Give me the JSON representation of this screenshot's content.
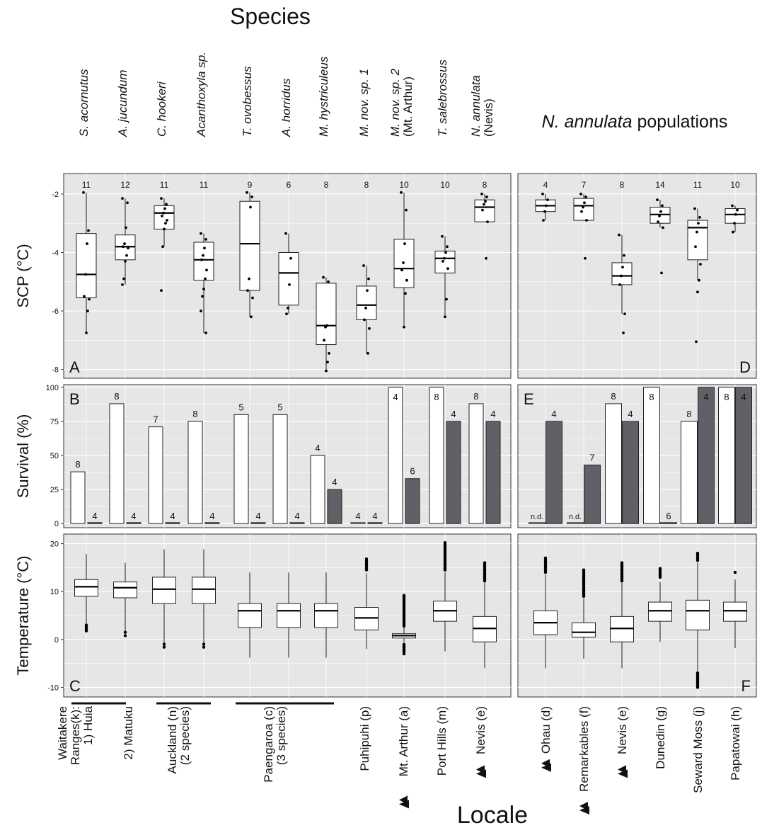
{
  "header": {
    "species_title": "Species",
    "populations_title": "N. annulata populations",
    "populations_title_italic": "N. annulata",
    "populations_title_rest": " populations",
    "locale_title": "Locale"
  },
  "species_labels": [
    [
      "S. acornutus"
    ],
    [
      "A. jucundum"
    ],
    [
      "C. hookeri"
    ],
    [
      "Acanthoxyla sp."
    ],
    [
      "T. ovobessus"
    ],
    [
      "A. horridus"
    ],
    [
      "M. hystriculeus"
    ],
    [
      "M. nov. sp. 1"
    ],
    [
      "M. nov. sp. 2",
      "(Mt. Arthur)"
    ],
    [
      "T. salebrossus"
    ],
    [
      "N. annulata",
      "(Nevis)"
    ]
  ],
  "locale_left": [
    {
      "lines": [
        "Waitakere",
        "Ranges(k):",
        "1) Huia"
      ],
      "mark": false
    },
    {
      "lines": [
        "2) Matuku"
      ],
      "mark": false
    },
    {
      "lines": [
        "Auckland (n)",
        "(2 species)"
      ],
      "mark": false
    },
    {
      "lines": [
        "Paengaroa (c)",
        "(3 species)"
      ],
      "mark": false
    },
    {
      "lines": [
        "Puhipuhi (p)"
      ],
      "mark": false
    },
    {
      "lines": [
        "Mt. Arthur (a)"
      ],
      "mark": true
    },
    {
      "lines": [
        "Port Hills (m)"
      ],
      "mark": false
    },
    {
      "lines": [
        "Nevis (e)"
      ],
      "mark": true
    }
  ],
  "locale_right": [
    {
      "lines": [
        "Ohau (d)"
      ],
      "mark": true
    },
    {
      "lines": [
        "Remarkables (f)"
      ],
      "mark": true
    },
    {
      "lines": [
        "Nevis (e)"
      ],
      "mark": true
    },
    {
      "lines": [
        "Dunedin (g)"
      ],
      "mark": false
    },
    {
      "lines": [
        "Seward Moss (j)"
      ],
      "mark": false
    },
    {
      "lines": [
        "Papatowai (h)"
      ],
      "mark": false
    }
  ],
  "chart_data": [
    {
      "panel": "A",
      "type": "box",
      "ylabel": "SCP (°C)",
      "ylim": [
        -8.3,
        -1.3
      ],
      "yticks": [
        -2,
        -4,
        -6,
        -8
      ],
      "grid": true,
      "categories": [
        "S. acornutus",
        "A. jucundum",
        "C. hookeri",
        "Acanthoxyla sp.",
        "T. ovobessus",
        "A. horridus",
        "M. hystriculeus",
        "M. nov. sp. 1",
        "M. nov. sp. 2 (Mt. Arthur)",
        "T. salebrossus",
        "N. annulata (Nevis)"
      ],
      "n": [
        "11",
        "12",
        "11",
        "11",
        "9",
        "6",
        "8",
        "8",
        "10",
        "10",
        "8"
      ],
      "boxes": [
        {
          "q1": -5.55,
          "median": -4.75,
          "q3": -3.35,
          "lo": -6.75,
          "hi": -1.95,
          "points": [
            -1.95,
            -3.25,
            -3.7,
            -4.75,
            -5.5,
            -5.6,
            -6.0,
            -6.75
          ]
        },
        {
          "q1": -4.25,
          "median": -3.8,
          "q3": -3.4,
          "lo": -5.1,
          "hi": -2.15,
          "points": [
            -2.15,
            -2.3,
            -3.15,
            -3.7,
            -3.8,
            -3.85,
            -4.1,
            -4.3,
            -4.9,
            -5.1
          ]
        },
        {
          "q1": -3.2,
          "median": -2.65,
          "q3": -2.4,
          "lo": -3.8,
          "hi": -2.15,
          "points": [
            -2.15,
            -2.35,
            -2.5,
            -2.65,
            -2.75,
            -2.9,
            -3.0,
            -3.2,
            -3.8,
            -5.3
          ]
        },
        {
          "q1": -4.95,
          "median": -4.25,
          "q3": -3.65,
          "lo": -6.75,
          "hi": -3.35,
          "points": [
            -3.35,
            -3.55,
            -3.85,
            -4.1,
            -4.25,
            -4.6,
            -4.9,
            -5.25,
            -5.5,
            -6.0,
            -6.75
          ]
        },
        {
          "q1": -5.3,
          "median": -3.7,
          "q3": -2.25,
          "lo": -6.2,
          "hi": -1.95,
          "points": [
            -1.95,
            -2.1,
            -2.45,
            -4.9,
            -5.3,
            -5.55,
            -6.2
          ]
        },
        {
          "q1": -5.8,
          "median": -4.7,
          "q3": -4.0,
          "lo": -6.1,
          "hi": -3.35,
          "points": [
            -3.35,
            -4.2,
            -5.1,
            -5.9,
            -6.1
          ]
        },
        {
          "q1": -7.15,
          "median": -6.5,
          "q3": -5.05,
          "lo": -8.05,
          "hi": -4.85,
          "points": [
            -4.85,
            -5.0,
            -6.5,
            -6.55,
            -7.0,
            -7.45,
            -7.75,
            -8.05
          ]
        },
        {
          "q1": -6.3,
          "median": -5.8,
          "q3": -5.15,
          "lo": -7.45,
          "hi": -4.45,
          "points": [
            -4.45,
            -4.9,
            -5.3,
            -5.9,
            -6.3,
            -6.6,
            -7.45
          ]
        },
        {
          "q1": -5.2,
          "median": -4.55,
          "q3": -3.55,
          "lo": -6.55,
          "hi": -1.95,
          "points": [
            -1.95,
            -2.55,
            -3.7,
            -4.35,
            -4.6,
            -4.95,
            -5.4,
            -6.55
          ]
        },
        {
          "q1": -4.7,
          "median": -4.2,
          "q3": -3.95,
          "lo": -6.2,
          "hi": -3.45,
          "points": [
            -3.45,
            -3.8,
            -4.0,
            -4.2,
            -4.3,
            -4.55,
            -5.6,
            -6.2
          ]
        },
        {
          "q1": -2.95,
          "median": -2.45,
          "q3": -2.2,
          "lo": -2.95,
          "hi": -2.0,
          "points": [
            -2.0,
            -2.1,
            -2.25,
            -2.35,
            -2.55,
            -2.95,
            -4.2
          ]
        }
      ]
    },
    {
      "panel": "D",
      "type": "box",
      "ylim": [
        -8.3,
        -1.3
      ],
      "grid": true,
      "categories": [
        "Ohau (d)",
        "Remarkables (f)",
        "Nevis (e)",
        "Dunedin (g)",
        "Seward Moss (j)",
        "Papatowai (h)"
      ],
      "n": [
        "4",
        "7",
        "8",
        "14",
        "11",
        "10"
      ],
      "boxes": [
        {
          "q1": -2.6,
          "median": -2.4,
          "q3": -2.2,
          "lo": -2.9,
          "hi": -2.0,
          "points": [
            -2.0,
            -2.2,
            -2.4,
            -2.6,
            -2.9
          ]
        },
        {
          "q1": -2.9,
          "median": -2.4,
          "q3": -2.15,
          "lo": -2.9,
          "hi": -2.0,
          "points": [
            -2.0,
            -2.1,
            -2.3,
            -2.45,
            -2.6,
            -2.9,
            -4.2
          ]
        },
        {
          "q1": -5.1,
          "median": -4.8,
          "q3": -4.35,
          "lo": -6.1,
          "hi": -3.4,
          "points": [
            -3.4,
            -4.1,
            -4.5,
            -4.8,
            -5.1,
            -6.1,
            -6.75
          ]
        },
        {
          "q1": -3.0,
          "median": -2.7,
          "q3": -2.45,
          "lo": -3.15,
          "hi": -2.2,
          "points": [
            -2.2,
            -2.4,
            -2.6,
            -2.75,
            -2.95,
            -3.15,
            -4.7
          ]
        },
        {
          "q1": -4.25,
          "median": -3.15,
          "q3": -2.9,
          "lo": -4.95,
          "hi": -2.5,
          "points": [
            -2.5,
            -2.8,
            -3.0,
            -3.3,
            -3.8,
            -4.4,
            -4.95,
            -5.35,
            -7.05
          ]
        },
        {
          "q1": -3.0,
          "median": -2.7,
          "q3": -2.5,
          "lo": -3.3,
          "hi": -2.4,
          "points": [
            -2.4,
            -2.55,
            -2.7,
            -3.0,
            -3.3
          ]
        }
      ]
    },
    {
      "panel": "B",
      "type": "bar",
      "ylabel": "Survival (%)",
      "ylim": [
        -3,
        102
      ],
      "yticks": [
        0,
        25,
        50,
        75,
        100
      ],
      "grid": true,
      "series": [
        {
          "color": "#ffffff",
          "values": [
            38,
            88,
            71,
            75,
            80,
            80,
            50,
            0,
            100,
            100,
            88
          ],
          "n": [
            "8",
            "8",
            "7",
            "8",
            "5",
            "5",
            "4",
            "4",
            "4",
            "8",
            "8"
          ]
        },
        {
          "color": "#5f6166",
          "values": [
            0,
            0,
            0,
            0,
            0,
            0,
            25,
            0,
            33,
            75,
            75
          ],
          "n": [
            "4",
            "4",
            "4",
            "4",
            "4",
            "4",
            "4",
            "4",
            "6",
            "4",
            "4"
          ]
        }
      ]
    },
    {
      "panel": "E",
      "type": "bar",
      "ylim": [
        -3,
        102
      ],
      "grid": true,
      "series": [
        {
          "color": "#ffffff",
          "values": [
            0,
            0,
            88,
            100,
            75,
            100
          ],
          "n": [
            "n.d.",
            "n.d.",
            "8",
            "8",
            "8",
            "8"
          ]
        },
        {
          "color": "#5f6166",
          "values": [
            75,
            43,
            75,
            0,
            100,
            100
          ],
          "n": [
            "4",
            "7",
            "4",
            "6",
            "4",
            "4"
          ]
        }
      ]
    },
    {
      "panel": "C",
      "type": "box",
      "ylabel": "Temperature (°C)",
      "ylim": [
        -12,
        22
      ],
      "yticks": [
        20,
        10,
        0,
        -10
      ],
      "grid": true,
      "boxes": [
        {
          "q1": 9.0,
          "median": 11.0,
          "q3": 12.5,
          "lo": 3.2,
          "hi": 17.8,
          "out_lo": [
            3.0,
            1.8
          ],
          "out_hi": []
        },
        {
          "q1": 8.7,
          "median": 10.8,
          "q3": 12.0,
          "lo": 1.8,
          "hi": 16.0,
          "out_lo": [
            1.5,
            0.8
          ],
          "out_hi": []
        },
        {
          "q1": 7.5,
          "median": 10.5,
          "q3": 13.0,
          "lo": -0.8,
          "hi": 18.8,
          "out_lo": [
            -1.0,
            -1.6
          ],
          "out_hi": []
        },
        {
          "q1": 7.5,
          "median": 10.5,
          "q3": 13.0,
          "lo": -0.8,
          "hi": 18.8,
          "out_lo": [
            -1.0,
            -1.6
          ],
          "out_hi": []
        },
        {
          "q1": 2.5,
          "median": 6.0,
          "q3": 7.5,
          "lo": -3.8,
          "hi": 14.0,
          "out_lo": [],
          "out_hi": []
        },
        {
          "q1": 2.5,
          "median": 6.0,
          "q3": 7.5,
          "lo": -3.8,
          "hi": 14.0,
          "out_lo": [],
          "out_hi": []
        },
        {
          "q1": 2.5,
          "median": 6.0,
          "q3": 7.5,
          "lo": -3.8,
          "hi": 14.0,
          "out_lo": [],
          "out_hi": []
        },
        {
          "q1": 2.0,
          "median": 4.5,
          "q3": 6.7,
          "lo": -2.0,
          "hi": 13.8,
          "out_lo": [],
          "out_hi": [
            14.5,
            16.8
          ]
        },
        {
          "q1": 0.3,
          "median": 0.8,
          "q3": 1.2,
          "lo": -0.5,
          "hi": 2.5,
          "out_lo": [
            -1.0,
            -3.0
          ],
          "out_hi": [
            2.8,
            9.2
          ]
        },
        {
          "q1": 3.8,
          "median": 6.0,
          "q3": 8.0,
          "lo": -2.5,
          "hi": 14.0,
          "out_lo": [],
          "out_hi": [
            14.5,
            20.2
          ]
        },
        {
          "q1": -0.5,
          "median": 2.3,
          "q3": 4.8,
          "lo": -6.0,
          "hi": 11.8,
          "out_lo": [],
          "out_hi": [
            12.2,
            16.0
          ]
        }
      ]
    },
    {
      "panel": "F",
      "type": "box",
      "ylim": [
        -12,
        22
      ],
      "grid": true,
      "boxes": [
        {
          "q1": 1.0,
          "median": 3.5,
          "q3": 6.0,
          "lo": -6.0,
          "hi": 13.5,
          "out_lo": [],
          "out_hi": [
            14.0,
            17.0
          ]
        },
        {
          "q1": 0.5,
          "median": 1.5,
          "q3": 3.5,
          "lo": -4.0,
          "hi": 8.5,
          "out_lo": [],
          "out_hi": [
            9.0,
            14.5
          ]
        },
        {
          "q1": -0.5,
          "median": 2.3,
          "q3": 4.8,
          "lo": -6.0,
          "hi": 11.8,
          "out_lo": [],
          "out_hi": [
            12.2,
            16.0
          ]
        },
        {
          "q1": 3.8,
          "median": 6.0,
          "q3": 7.8,
          "lo": -0.5,
          "hi": 12.0,
          "out_lo": [],
          "out_hi": [
            13.0,
            14.8
          ]
        },
        {
          "q1": 2.0,
          "median": 6.0,
          "q3": 8.2,
          "lo": -6.8,
          "hi": 16.0,
          "out_lo": [
            -7.0,
            -10.0
          ],
          "out_hi": [
            16.5,
            18.0
          ]
        },
        {
          "q1": 3.8,
          "median": 6.0,
          "q3": 7.8,
          "lo": -1.8,
          "hi": 12.5,
          "out_lo": [],
          "out_hi": [
            14.0
          ]
        }
      ]
    }
  ]
}
